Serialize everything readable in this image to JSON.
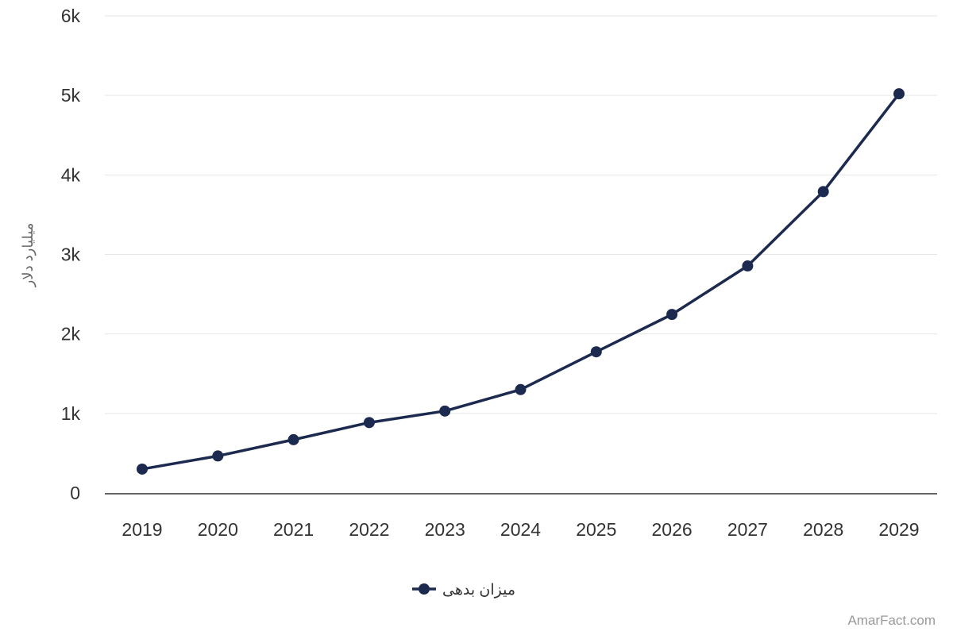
{
  "chart_data": {
    "type": "line",
    "x": [
      "2019",
      "2020",
      "2021",
      "2022",
      "2023",
      "2024",
      "2025",
      "2026",
      "2027",
      "2028",
      "2029"
    ],
    "series": [
      {
        "name": "میزان بدهی",
        "values": [
          300,
          465,
          670,
          885,
          1030,
          1300,
          1775,
          2245,
          2855,
          3790,
          5020
        ],
        "color": "#1b2a4e"
      }
    ],
    "ylabel": "میلیارد دلار",
    "xlabel": "",
    "ylim": [
      0,
      6000
    ],
    "yticks": [
      0,
      1000,
      2000,
      3000,
      4000,
      5000,
      6000
    ],
    "ytick_labels": [
      "0",
      "1k",
      "2k",
      "3k",
      "4k",
      "5k",
      "6k"
    ],
    "grid": true,
    "legend": "bottom-center"
  },
  "credit": "AmarFact.com"
}
